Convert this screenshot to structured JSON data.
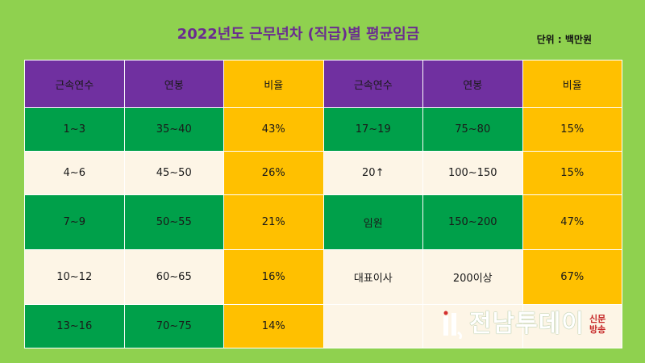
{
  "title": "2022년도  근무년차 (직급)별 평균임금",
  "unit": "단위 : 백만원",
  "headers": [
    "근속연수",
    "연봉",
    "비율",
    "근속연수",
    "연봉",
    "비율"
  ],
  "rows": [
    [
      "1~3",
      "35~40",
      "43%",
      "17~19",
      "75~80",
      "15%"
    ],
    [
      "4~6",
      "45~50",
      "26%",
      "20↑",
      "100~150",
      "15%"
    ],
    [
      "7~9",
      "50~55",
      "21%",
      "임원",
      "150~200",
      "47%"
    ],
    [
      "10~12",
      "60~65",
      "16%",
      "대표이사",
      "200이상",
      "67%"
    ],
    [
      "13~16",
      "70~75",
      "14%",
      "",
      "",
      ""
    ]
  ],
  "logo": {
    "text": "전남투데이",
    "sub_top": "신문",
    "sub_bottom": "방송"
  },
  "colors": {
    "background": "#8fd14f",
    "header_purple": "#7030a0",
    "gold": "#ffc000",
    "green": "#00a04a",
    "cream": "#fdf5e6"
  }
}
